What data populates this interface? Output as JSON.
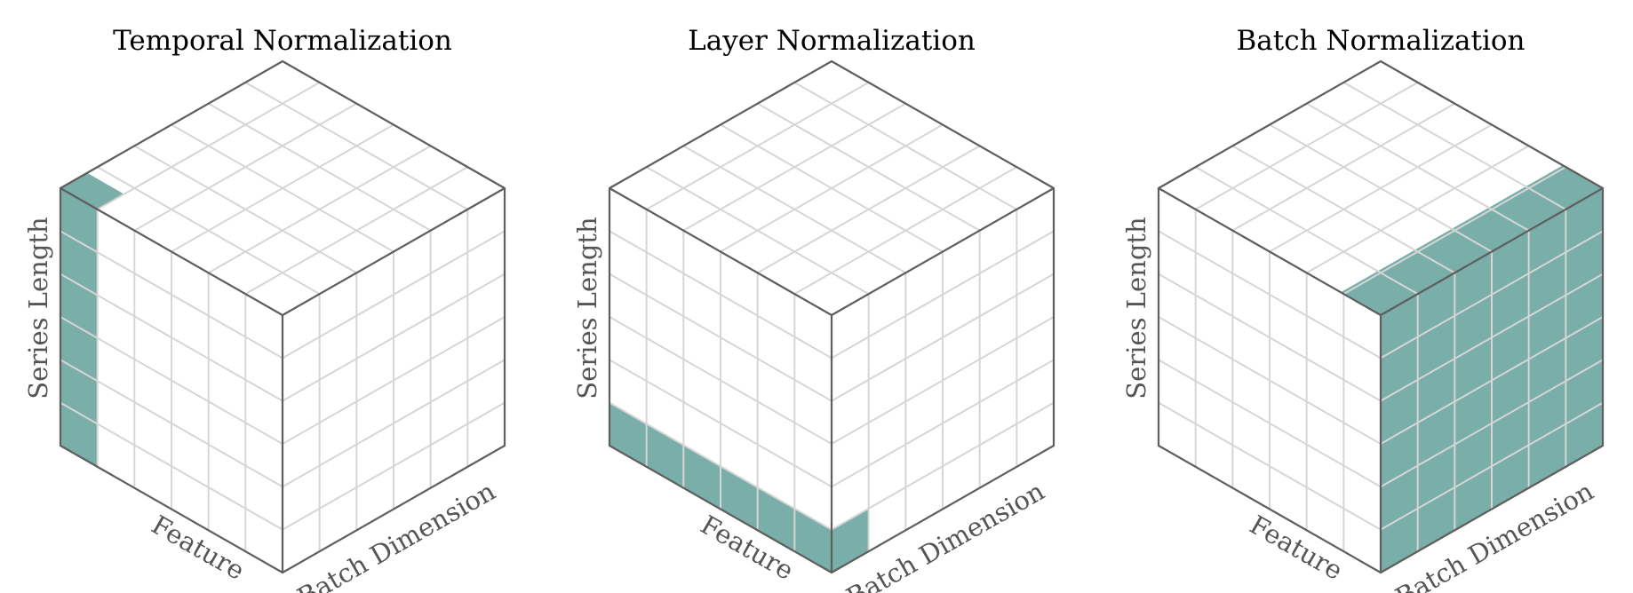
{
  "figure": {
    "highlight_color": "#7aaea8",
    "panels": [
      {
        "id": "temporal",
        "title": "Temporal Normalization",
        "left_axis_label": "Series Length",
        "front_axis_label": "Feature",
        "right_axis_label": "Batch Dimension",
        "highlight": "series-column"
      },
      {
        "id": "layer",
        "title": "Layer Normalization",
        "left_axis_label": "Series Length",
        "front_axis_label": "Feature",
        "right_axis_label": "Batch Dimension",
        "highlight": "feature-row"
      },
      {
        "id": "batch",
        "title": "Batch Normalization",
        "left_axis_label": "Series Length",
        "front_axis_label": "Feature",
        "right_axis_label": "Batch Dimension",
        "highlight": "batch-face"
      }
    ]
  }
}
